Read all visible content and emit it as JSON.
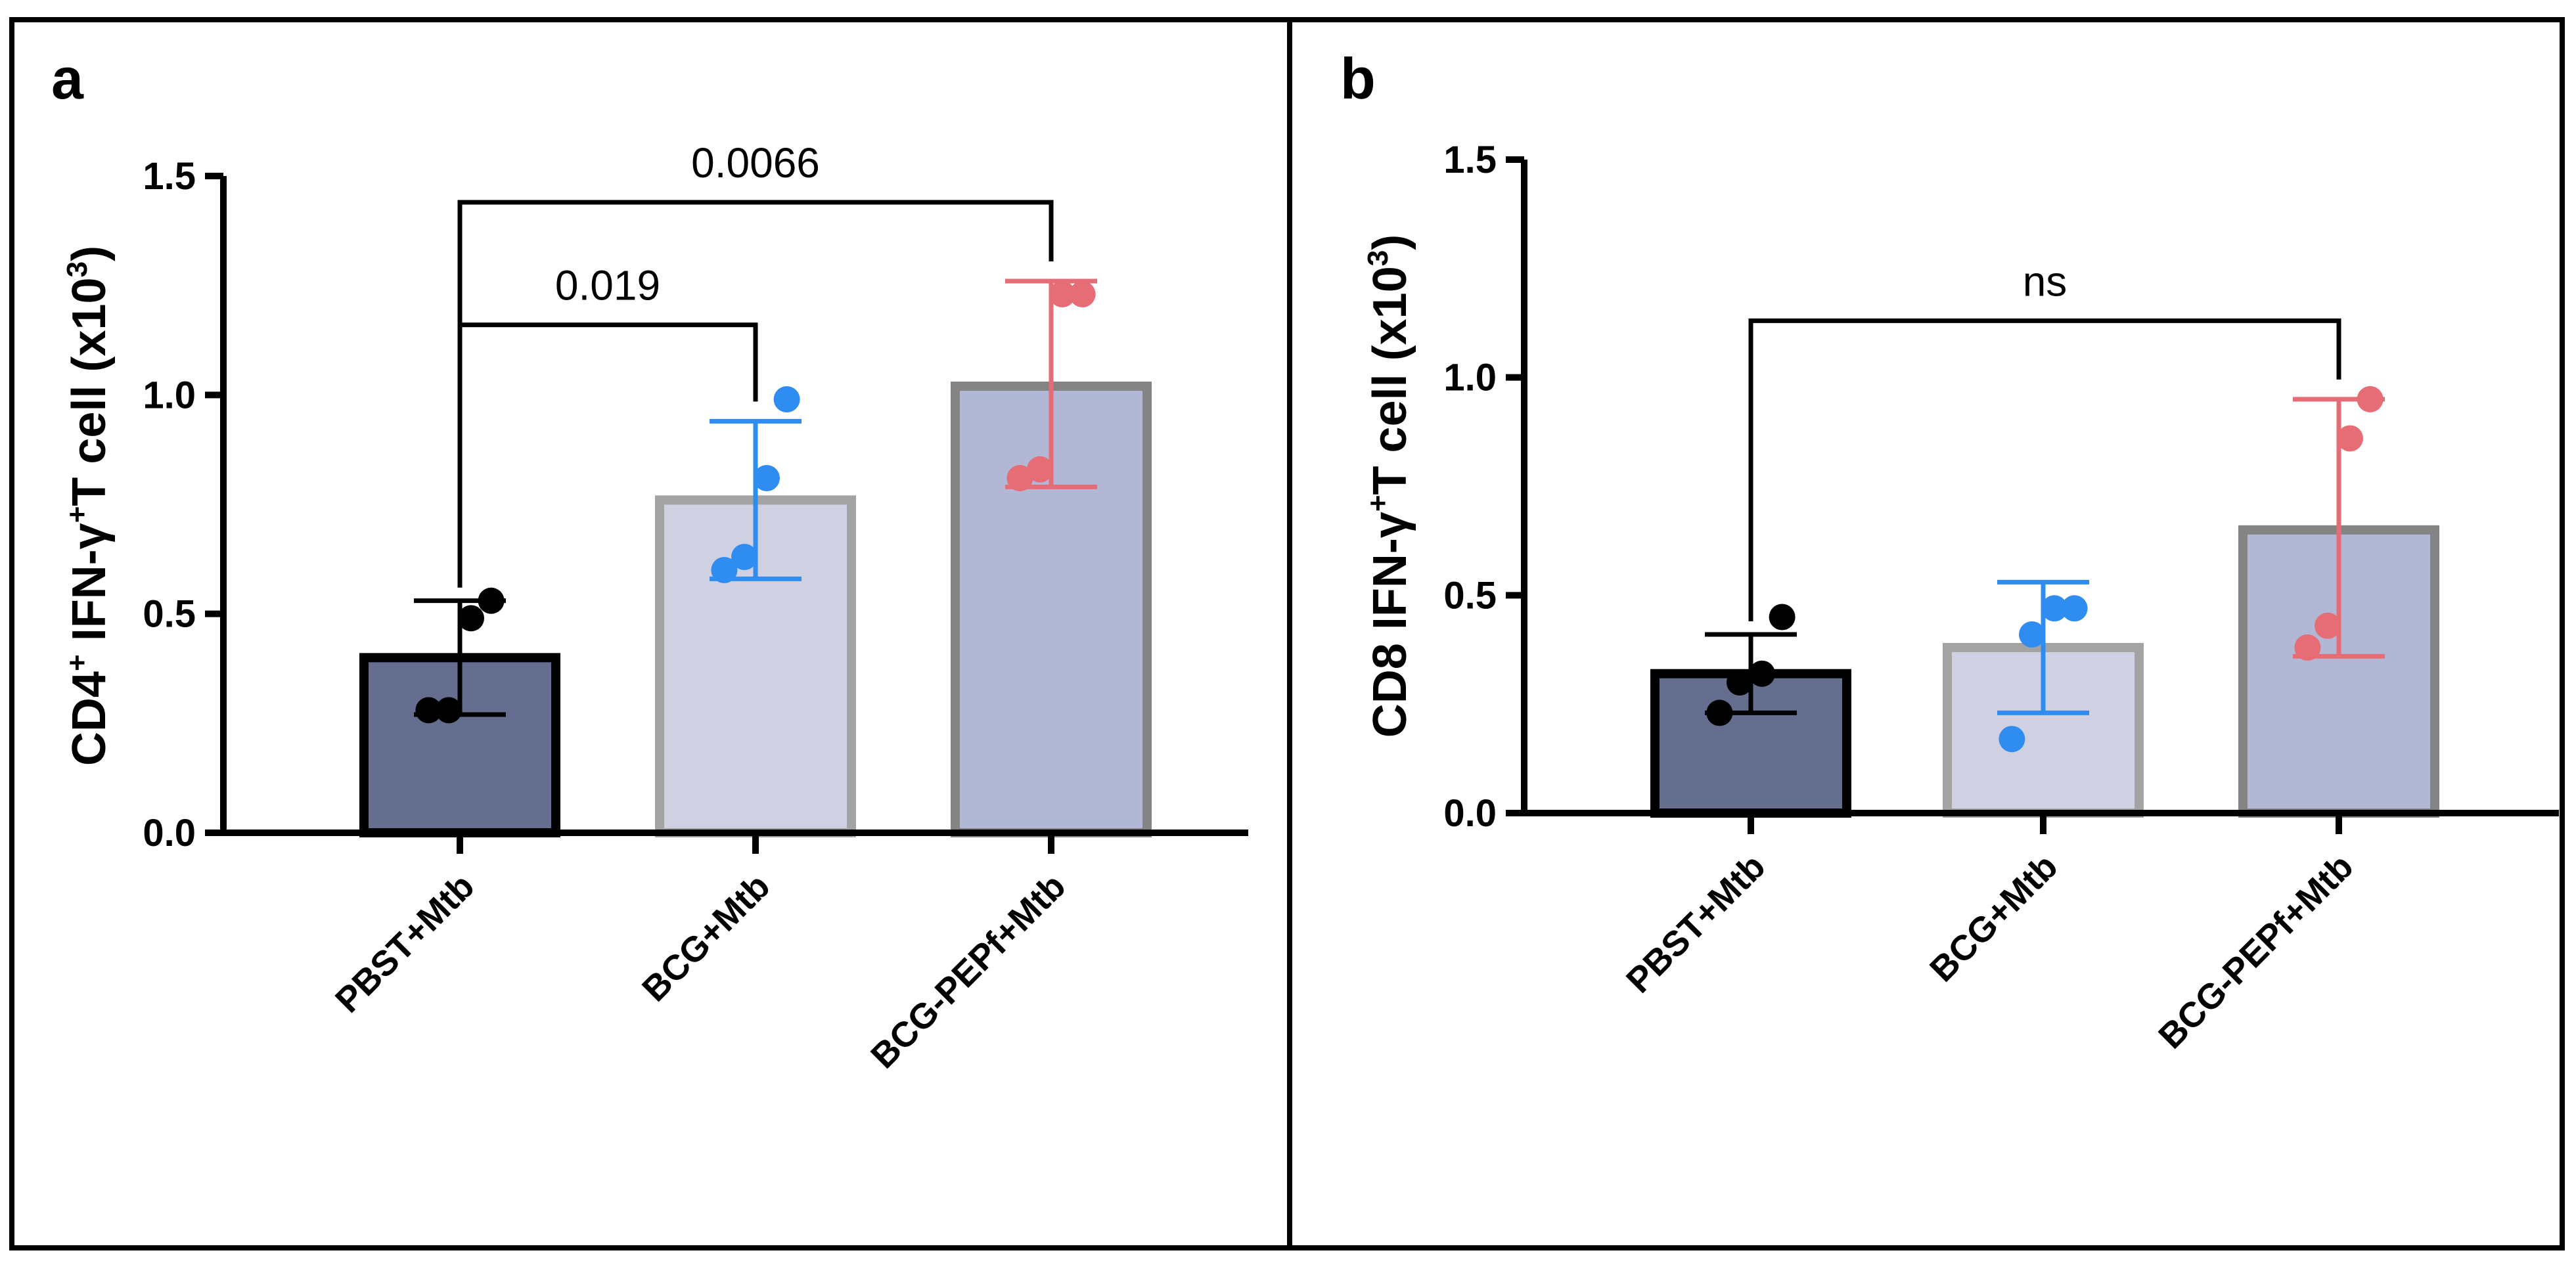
{
  "chart_data": [
    {
      "type": "bar",
      "panel": "a",
      "ylabel_parts": [
        "CD4",
        "+",
        " IFN-γ",
        "+",
        "T cell  (x10",
        "3",
        ")"
      ],
      "yticks": [
        0.0,
        0.5,
        1.0,
        1.5
      ],
      "ytick_labels": [
        "0.0",
        "0.5",
        "1.0",
        "1.5"
      ],
      "ylim": [
        0,
        1.5
      ],
      "categories": [
        "PBST+Mtb",
        "BCG+Mtb",
        "BCG-PEPf+Mtb"
      ],
      "values": [
        0.4,
        0.76,
        1.02
      ],
      "error_low": [
        0.27,
        0.58,
        0.79
      ],
      "error_high": [
        0.53,
        0.94,
        1.26
      ],
      "points": [
        [
          0.28,
          0.28,
          0.49,
          0.53
        ],
        [
          0.6,
          0.63,
          0.81,
          0.99
        ],
        [
          0.81,
          0.83,
          1.23,
          1.23
        ]
      ],
      "annotations": [
        {
          "from": 0,
          "to": 1,
          "label": "0.019",
          "level": 1.16
        },
        {
          "from": 0,
          "to": 2,
          "label": "0.0066",
          "level": 1.44
        }
      ]
    },
    {
      "type": "bar",
      "panel": "b",
      "ylabel_parts": [
        "CD8 IFN-γ",
        "+",
        "T cell  (x10",
        "3",
        ")"
      ],
      "yticks": [
        0.0,
        0.5,
        1.0,
        1.5
      ],
      "ytick_labels": [
        "0.0",
        "0.5",
        "1.0",
        "1.5"
      ],
      "ylim": [
        0,
        1.5
      ],
      "categories": [
        "PBST+Mtb",
        "BCG+Mtb",
        "BCG-PEPf+Mtb"
      ],
      "values": [
        0.32,
        0.38,
        0.65
      ],
      "error_low": [
        0.23,
        0.23,
        0.36
      ],
      "error_high": [
        0.41,
        0.53,
        0.95
      ],
      "points": [
        [
          0.23,
          0.3,
          0.32,
          0.45
        ],
        [
          0.17,
          0.41,
          0.47,
          0.47
        ],
        [
          0.38,
          0.43,
          0.86,
          0.95
        ]
      ],
      "annotations": [
        {
          "from": 0,
          "to": 2,
          "label": "ns",
          "level": 1.13
        }
      ]
    }
  ],
  "colors": {
    "bar_fill": [
      "#656e8f",
      "#cfd0e2",
      "#b1b7d4"
    ],
    "bar_stroke": [
      "#000000",
      "#a3a3a3",
      "#848484"
    ],
    "points": [
      "#000000",
      "#2f8cf0",
      "#e66d75"
    ]
  }
}
